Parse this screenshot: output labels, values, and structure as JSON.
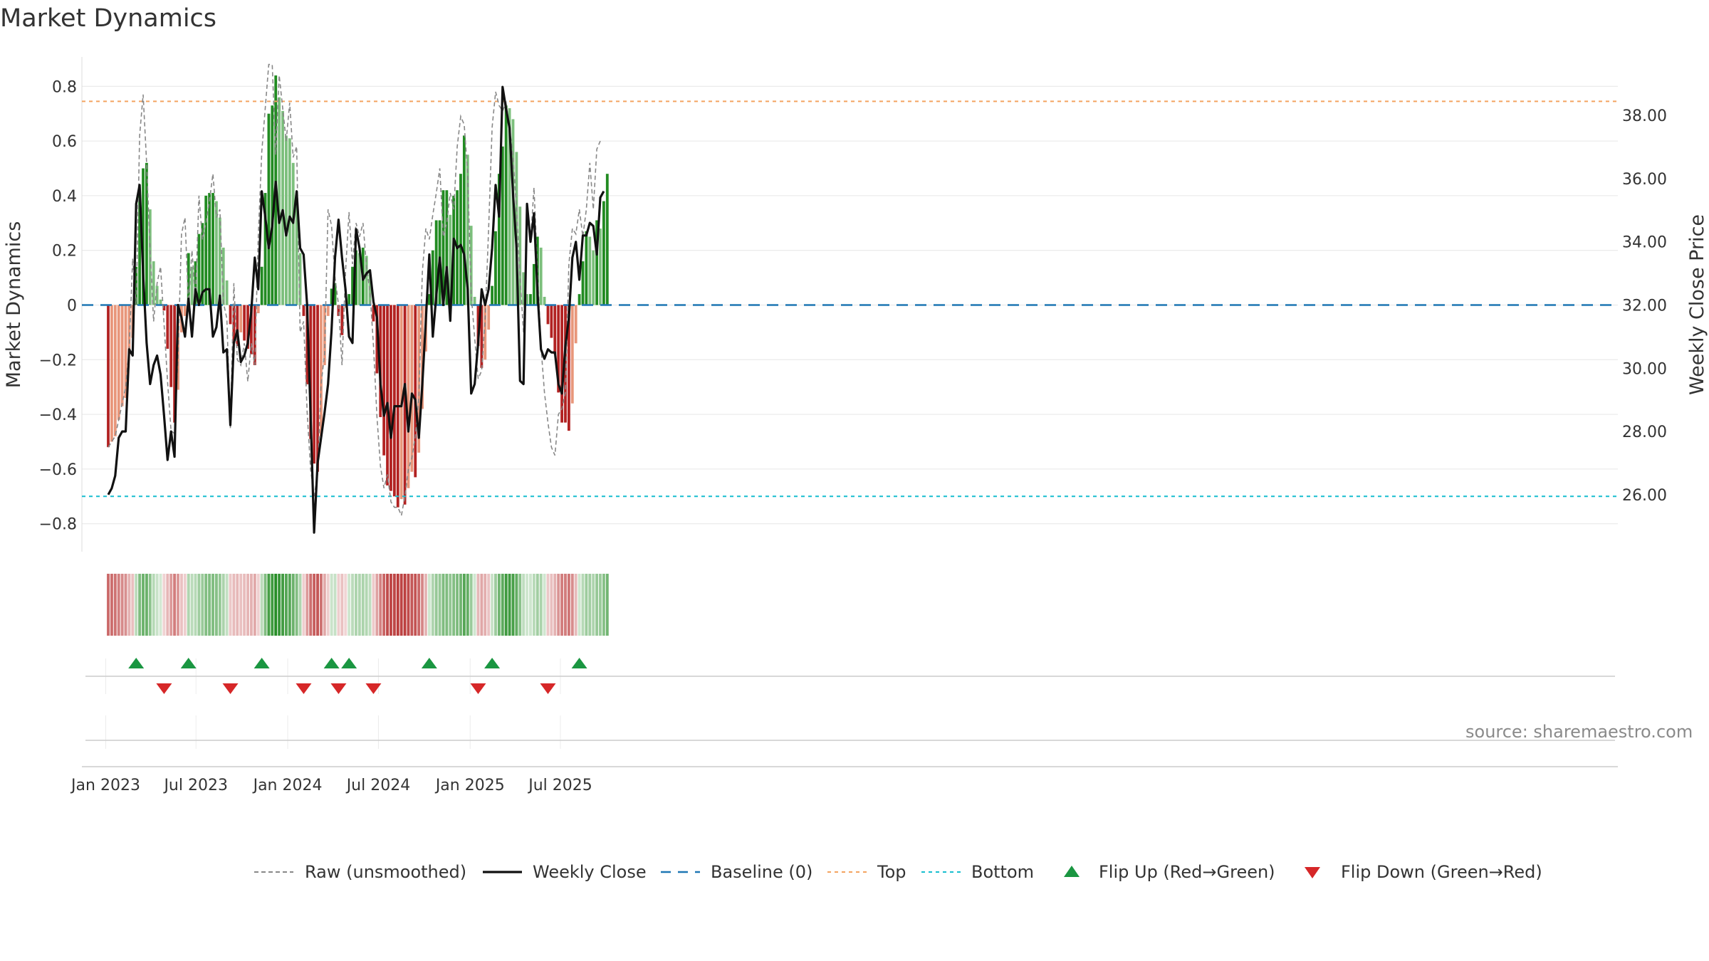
{
  "chart_data": {
    "type": "bar",
    "title": "Market Dynamics",
    "source_note": "source: sharemaestro.com",
    "ylabel_left": "Market Dynamics",
    "ylabel_right": "Weekly Close Price",
    "x_start": "2023-01-06",
    "interval_days": 7,
    "ylim_left": [
      -0.9,
      0.91
    ],
    "ylim_right": [
      24.7,
      39.3
    ],
    "left_ticks": [
      "0.8",
      "0.6",
      "0.4",
      "0.2",
      "0",
      "−0.2",
      "−0.4",
      "−0.6",
      "−0.8"
    ],
    "right_ticks": [
      "38.00",
      "36.00",
      "34.00",
      "32.00",
      "30.00",
      "28.00",
      "26.00"
    ],
    "x_ticks": [
      {
        "date": "2023-01-01",
        "label": "Jan 2023"
      },
      {
        "date": "2023-07-01",
        "label": "Jul 2023"
      },
      {
        "date": "2024-01-01",
        "label": "Jan 2024"
      },
      {
        "date": "2024-07-01",
        "label": "Jul 2024"
      },
      {
        "date": "2025-01-01",
        "label": "Jan 2025"
      },
      {
        "date": "2025-07-01",
        "label": "Jul 2025"
      }
    ],
    "reference_lines": {
      "top": 0.745,
      "bottom": -0.7,
      "baseline": 0
    },
    "series": [
      {
        "name": "Market Dynamics",
        "values": [
          -0.52,
          -0.5,
          -0.48,
          -0.42,
          -0.37,
          -0.34,
          -0.18,
          -0.12,
          0.14,
          0.42,
          0.5,
          0.52,
          0.35,
          0.16,
          0.07,
          0.02,
          -0.02,
          -0.16,
          -0.3,
          -0.43,
          -0.31,
          -0.1,
          -0.04,
          0.19,
          0.14,
          0.16,
          0.26,
          0.3,
          0.4,
          0.41,
          0.41,
          0.38,
          0.32,
          0.21,
          0.09,
          -0.07,
          -0.14,
          -0.15,
          -0.1,
          -0.13,
          -0.16,
          -0.18,
          -0.22,
          -0.03,
          0.14,
          0.41,
          0.7,
          0.73,
          0.84,
          0.76,
          0.71,
          0.62,
          0.61,
          0.52,
          0.4,
          0.19,
          -0.04,
          -0.29,
          -0.49,
          -0.58,
          -0.61,
          -0.48,
          -0.22,
          -0.04,
          0.06,
          0.08,
          -0.04,
          -0.11,
          -0.01,
          0.04,
          0.14,
          0.2,
          0.19,
          0.21,
          0.18,
          0.12,
          -0.06,
          -0.25,
          -0.41,
          -0.55,
          -0.66,
          -0.68,
          -0.7,
          -0.74,
          -0.71,
          -0.73,
          -0.67,
          -0.61,
          -0.63,
          -0.54,
          -0.38,
          -0.17,
          0.04,
          0.2,
          0.31,
          0.31,
          0.42,
          0.42,
          0.33,
          0.4,
          0.42,
          0.48,
          0.62,
          0.55,
          0.29,
          0.03,
          -0.15,
          -0.23,
          -0.2,
          -0.09,
          0.07,
          0.27,
          0.48,
          0.58,
          0.73,
          0.72,
          0.68,
          0.56,
          0.36,
          0.12,
          0.04,
          0.04,
          0.15,
          0.25,
          0.21,
          0.03,
          -0.07,
          -0.12,
          -0.18,
          -0.32,
          -0.43,
          -0.43,
          -0.46,
          -0.36,
          -0.14,
          0.04,
          0.16,
          0.27,
          0.25,
          0.2,
          0.31,
          0.28,
          0.38,
          0.48
        ]
      },
      {
        "name": "Raw (unsmoothed)",
        "values": [
          -0.52,
          -0.5,
          -0.48,
          -0.42,
          -0.36,
          -0.3,
          -0.16,
          0.17,
          0.0,
          0.62,
          0.77,
          0.52,
          0.2,
          -0.06,
          0.08,
          0.14,
          -0.07,
          -0.28,
          -0.46,
          -0.47,
          -0.19,
          0.26,
          0.32,
          0.0,
          0.2,
          0.02,
          0.4,
          0.24,
          0.3,
          0.38,
          0.48,
          0.32,
          0.35,
          0.01,
          -0.05,
          -0.45,
          0.08,
          -0.2,
          -0.22,
          -0.14,
          -0.28,
          -0.14,
          -0.22,
          0.25,
          0.56,
          0.72,
          0.88,
          0.88,
          0.55,
          0.84,
          0.72,
          0.6,
          0.74,
          0.54,
          0.58,
          -0.1,
          -0.06,
          -0.39,
          -0.6,
          -0.7,
          -0.62,
          -0.29,
          -0.18,
          0.35,
          0.29,
          0.1,
          0.0,
          -0.22,
          0.12,
          0.34,
          0.15,
          0.3,
          0.25,
          0.3,
          0.14,
          0.05,
          -0.15,
          -0.41,
          -0.59,
          -0.67,
          -0.62,
          -0.72,
          -0.74,
          -0.74,
          -0.77,
          -0.7,
          -0.6,
          -0.56,
          -0.48,
          -0.34,
          0.12,
          0.28,
          0.24,
          0.33,
          0.41,
          0.5,
          0.25,
          0.3,
          0.41,
          0.35,
          0.58,
          0.69,
          0.66,
          0.48,
          0.04,
          -0.12,
          -0.27,
          -0.24,
          -0.05,
          0.28,
          0.65,
          0.78,
          0.73,
          0.71,
          0.74,
          0.65,
          0.54,
          0.35,
          0.1,
          -0.1,
          0.33,
          0.23,
          0.43,
          0.13,
          -0.15,
          -0.32,
          -0.43,
          -0.52,
          -0.55,
          -0.4,
          -0.38,
          -0.32,
          0.15,
          0.28,
          0.26,
          0.35,
          0.25,
          0.35,
          0.52,
          0.35,
          0.57,
          0.6
        ]
      },
      {
        "name": "Weekly Close",
        "values": [
          26.0,
          26.2,
          26.6,
          27.8,
          28.0,
          28.0,
          30.6,
          30.4,
          35.2,
          35.8,
          33.0,
          30.8,
          29.5,
          30.1,
          30.4,
          29.8,
          28.5,
          27.1,
          28.0,
          27.2,
          32.0,
          31.6,
          31.0,
          32.2,
          31.0,
          32.5,
          32.0,
          32.4,
          32.5,
          32.5,
          31.0,
          31.3,
          32.3,
          30.5,
          30.6,
          28.2,
          30.8,
          31.2,
          30.2,
          30.4,
          30.8,
          31.8,
          33.5,
          32.5,
          35.6,
          34.8,
          33.8,
          34.5,
          35.9,
          34.6,
          35.0,
          34.2,
          34.8,
          34.6,
          35.6,
          33.8,
          33.6,
          32.0,
          28.5,
          24.8,
          27.0,
          27.8,
          28.6,
          29.5,
          31.2,
          33.5,
          34.7,
          33.5,
          32.5,
          31.0,
          30.8,
          34.4,
          33.8,
          32.8,
          33.0,
          33.1,
          32.1,
          31.6,
          29.5,
          28.5,
          28.9,
          27.8,
          28.8,
          28.8,
          28.8,
          29.5,
          28.0,
          29.2,
          29.0,
          27.8,
          29.5,
          31.5,
          33.6,
          31.0,
          32.3,
          33.5,
          32.0,
          33.2,
          31.5,
          34.1,
          33.8,
          33.9,
          33.6,
          32.5,
          29.2,
          29.5,
          30.8,
          32.5,
          32.0,
          32.5,
          33.8,
          35.8,
          34.8,
          38.9,
          38.2,
          37.6,
          35.5,
          33.8,
          29.6,
          29.5,
          35.2,
          34.0,
          34.9,
          32.4,
          30.6,
          30.3,
          30.6,
          30.5,
          30.5,
          29.5,
          29.2,
          30.7,
          31.6,
          33.5,
          34.0,
          32.8,
          34.2,
          34.2,
          34.6,
          34.5,
          33.6,
          35.4,
          35.6
        ]
      }
    ]
  },
  "legend": {
    "raw": "Raw (unsmoothed)",
    "close": "Weekly Close",
    "baseline": "Baseline (0)",
    "top": "Top",
    "bottom": "Bottom",
    "flip_up": "Flip Up (Red→Green)",
    "flip_down": "Flip Down (Green→Red)"
  },
  "colors": {
    "bull_strong": "#228b22",
    "bull_weak": "#7cbf7c",
    "bear_strong": "#b22222",
    "bear_weak": "#e8967a",
    "raw_line": "#888888",
    "close_line": "#111111",
    "baseline": "#1f77b4",
    "top_line": "#f4a460",
    "bottom_line": "#17becf",
    "flip_up": "#1a9641",
    "flip_down": "#d62728"
  }
}
